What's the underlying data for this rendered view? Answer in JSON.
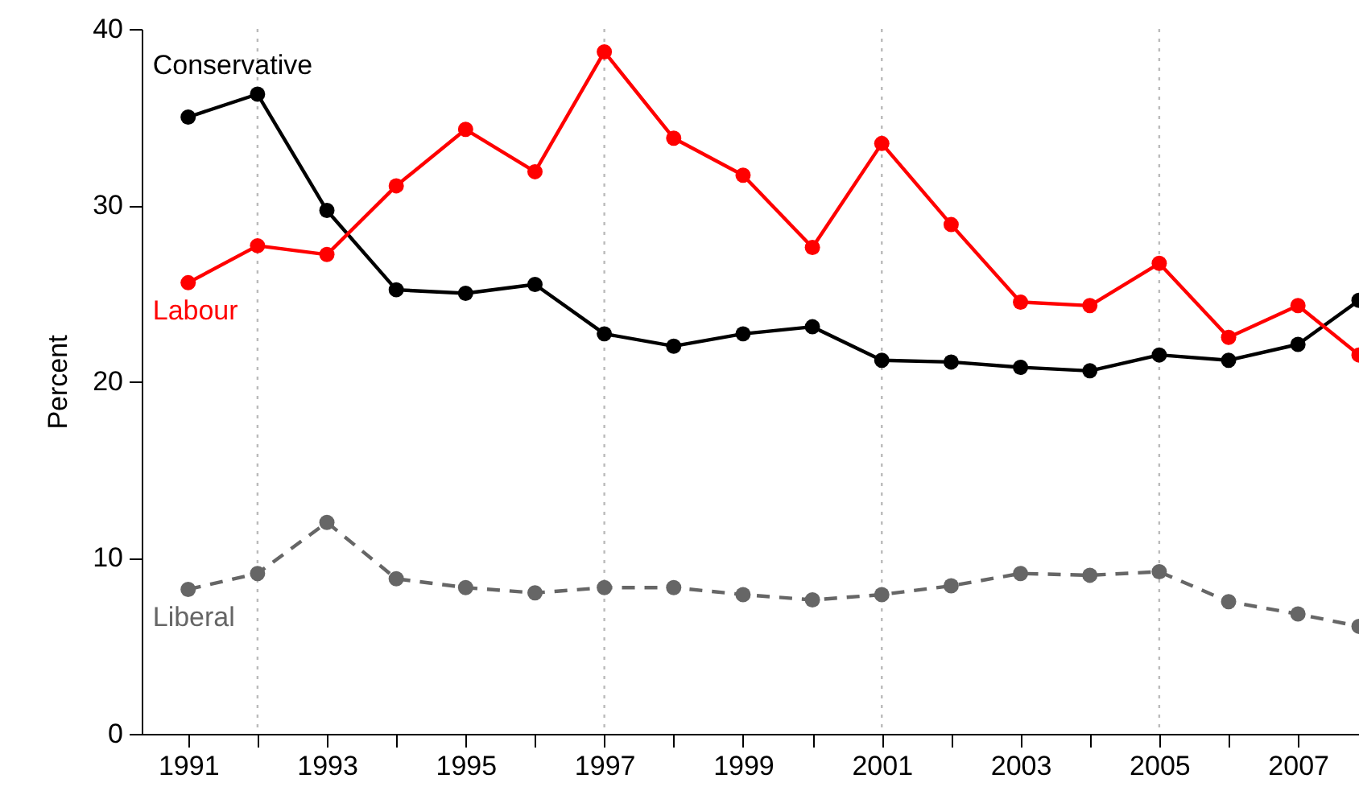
{
  "chart_data": {
    "type": "line",
    "ylabel": "Percent",
    "x": [
      1991,
      1992,
      1993,
      1994,
      1995,
      1996,
      1997,
      1998,
      1999,
      2000,
      2001,
      2002,
      2003,
      2004,
      2005,
      2006,
      2007,
      2007.88
    ],
    "series": [
      {
        "name": "Conservative",
        "color": "#000000",
        "line_style": "solid",
        "values": [
          35.0,
          36.3,
          29.7,
          25.2,
          25.0,
          25.5,
          22.7,
          22.0,
          22.7,
          23.1,
          21.2,
          21.1,
          20.8,
          20.6,
          21.5,
          21.2,
          22.1,
          24.6
        ]
      },
      {
        "name": "Labour",
        "color": "#ff0000",
        "line_style": "solid",
        "values": [
          25.6,
          27.7,
          27.2,
          31.1,
          34.3,
          31.9,
          38.7,
          33.8,
          31.7,
          27.6,
          33.5,
          28.9,
          24.5,
          24.3,
          26.7,
          22.5,
          24.3,
          21.5
        ]
      },
      {
        "name": "Liberal",
        "color": "#666666",
        "line_style": "dashed",
        "values": [
          8.2,
          9.1,
          12.0,
          8.8,
          8.3,
          8.0,
          8.3,
          8.3,
          7.9,
          7.6,
          7.9,
          8.4,
          9.1,
          9.0,
          9.2,
          7.5,
          6.8,
          6.1
        ]
      }
    ],
    "marker": "circle",
    "xlim": [
      1990.33,
      2007.88
    ],
    "xticks": [
      1991,
      {
        "value": 1992,
        "label": null
      },
      1993,
      {
        "value": 1994,
        "label": null
      },
      1995,
      {
        "value": 1996,
        "label": null
      },
      1997,
      {
        "value": 1998,
        "label": null
      },
      1999,
      {
        "value": 2000,
        "label": null
      },
      2001,
      {
        "value": 2002,
        "label": null
      },
      2003,
      {
        "value": 2004,
        "label": null
      },
      2005,
      {
        "value": 2006,
        "label": null
      },
      2007
    ],
    "ylim": [
      0,
      40
    ],
    "yticks": [
      0,
      10,
      20,
      30,
      40
    ],
    "ref_lines": [
      {
        "axis": "x",
        "value": 1992,
        "color": "#bbbbbb",
        "line_style": "dotted"
      },
      {
        "axis": "x",
        "value": 1997,
        "color": "#bbbbbb",
        "line_style": "dotted"
      },
      {
        "axis": "x",
        "value": 2001,
        "color": "#bbbbbb",
        "line_style": "dotted"
      },
      {
        "axis": "x",
        "value": 2005,
        "color": "#bbbbbb",
        "line_style": "dotted"
      }
    ],
    "grid": false
  }
}
